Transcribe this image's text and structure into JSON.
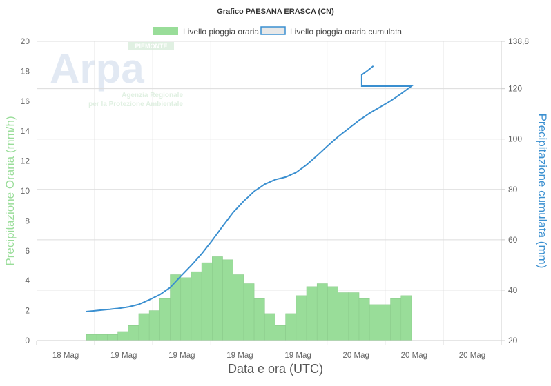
{
  "chart_data": {
    "type": "bar",
    "title": "Grafico PAESANA ERASCA (CN)",
    "xlabel": "Data e ora (UTC)",
    "ylabel_left": "Precipitazione Oraria (mm/h)",
    "ylabel_right": "Precipitazione cumulata (mm)",
    "x_tick_labels": [
      "18 Mag",
      "19 Mag",
      "19 Mag",
      "19 Mag",
      "19 Mag",
      "20 Mag",
      "20 Mag",
      "20 Mag"
    ],
    "x_unit": "hours",
    "xlim": [
      0,
      44.3
    ],
    "bars_start_hour": 4.74,
    "ylim_left": [
      0,
      20
    ],
    "yticks_left": [
      "0",
      "2",
      "4",
      "6",
      "8",
      "10",
      "12",
      "14",
      "16",
      "18",
      "20"
    ],
    "ylim_right": [
      20,
      138.8
    ],
    "yticks_right": [
      "20",
      "40",
      "60",
      "80",
      "100",
      "120",
      "138,8"
    ],
    "yticks_right_values": [
      20,
      40,
      60,
      80,
      100,
      120,
      138.8
    ],
    "legend_position": "top-center",
    "grid": true,
    "series": [
      {
        "name": "Livello pioggia oraria",
        "kind": "bar",
        "axis": "left",
        "color": "#99dd99",
        "values": [
          0.4,
          0.4,
          0.4,
          0.6,
          1.0,
          1.8,
          2.0,
          2.8,
          4.4,
          4.2,
          4.6,
          5.2,
          5.6,
          5.4,
          4.4,
          3.8,
          2.8,
          1.8,
          1.0,
          1.8,
          3.0,
          3.6,
          3.8,
          3.6,
          3.2,
          3.2,
          2.8,
          2.4,
          2.4,
          2.8,
          3.0
        ]
      },
      {
        "name": "Livello pioggia oraria cumulata",
        "kind": "line",
        "axis": "right",
        "color": "#3a8fd0",
        "start_value": 31.5,
        "tail": [
          [
            31.0,
            121.0
          ],
          [
            31.0,
            125.5
          ],
          [
            31.5,
            127.0
          ],
          [
            32.1,
            129.0
          ]
        ]
      }
    ]
  },
  "watermark": {
    "logo": "Arpa",
    "region": "PIEMONTE",
    "line1": "Agenzia Regionale",
    "line2": "per la Protezione Ambientale"
  }
}
